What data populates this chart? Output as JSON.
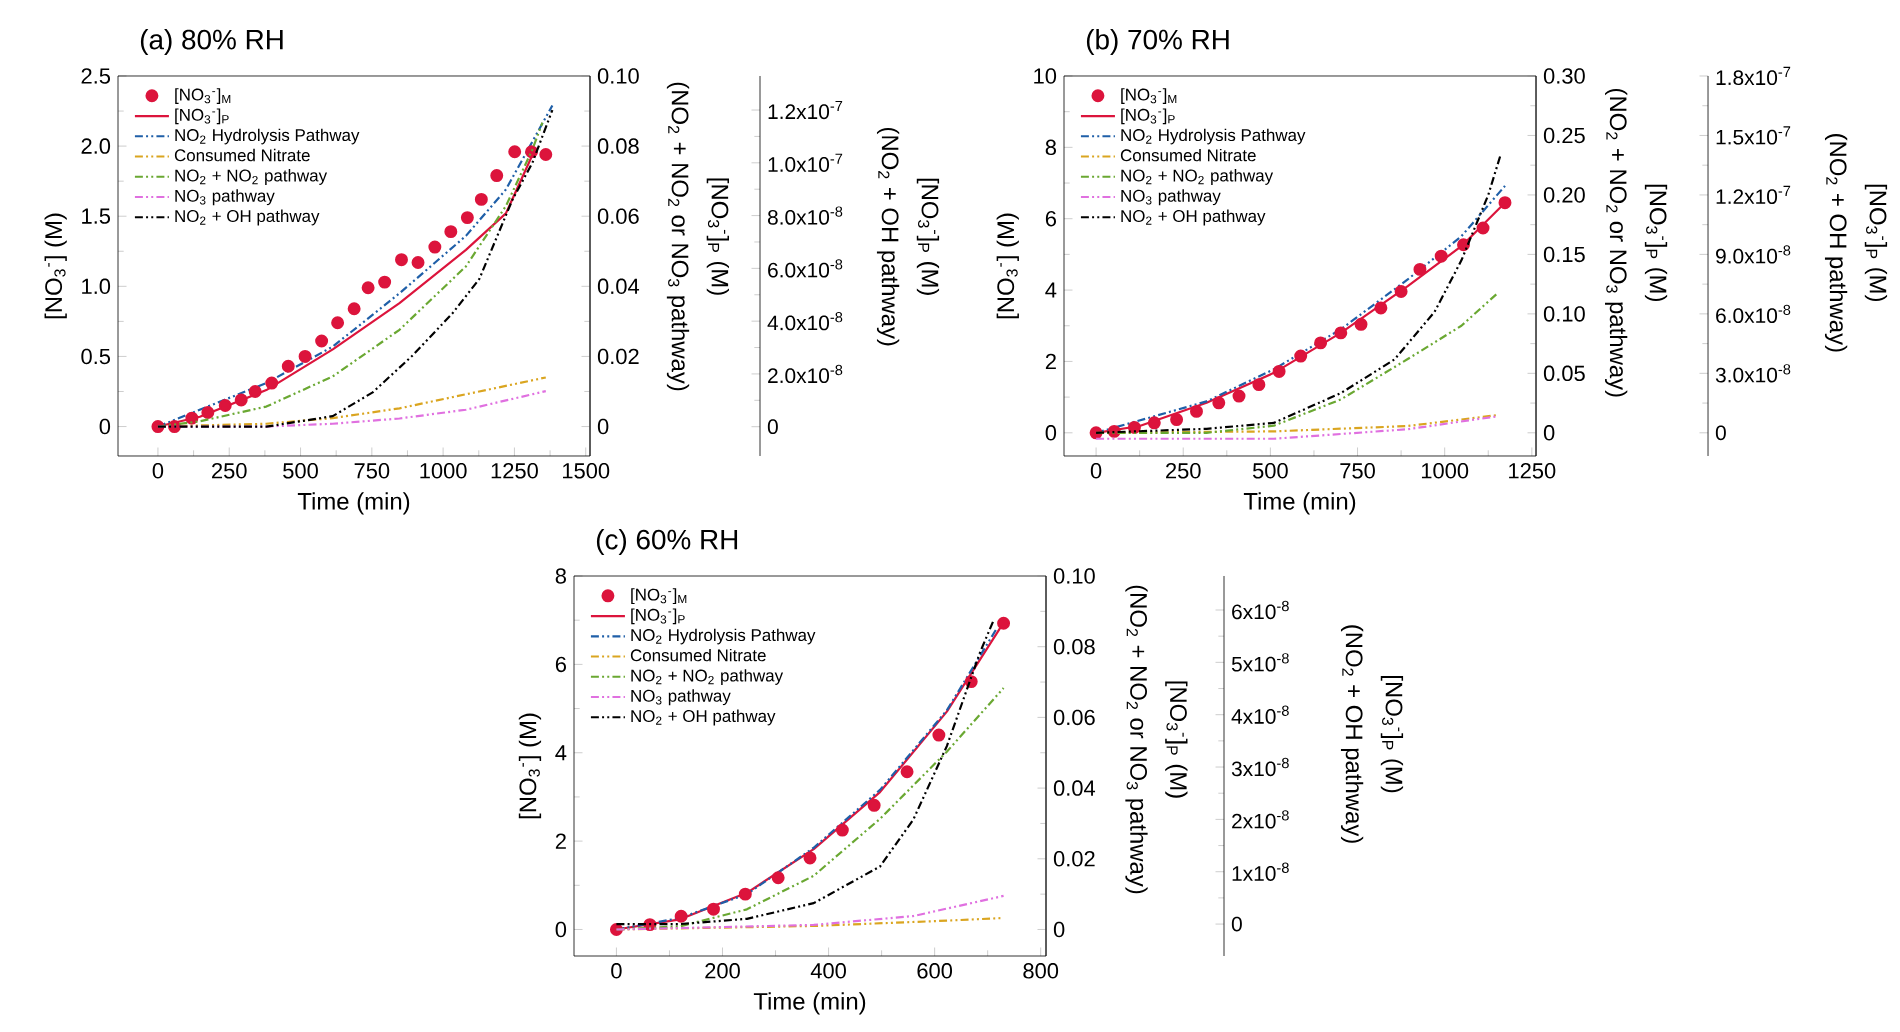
{
  "chart_data": [
    {
      "type": "line",
      "title": "(a) 80% RH",
      "xlabel": "Time (min)",
      "ylabel": "[NO$_{3}$$^{-}$] (M)",
      "y2label": "[NO$_{3}$$^{-}$]$_{P}$ (M) (NO$_{2}$ + NO$_{2}$ or NO$_{3}$ pathway)",
      "y3label": "[NO$_{3}$$^{-}$]$_{P}$ (M) (NO$_{2}$ + OH pathway)",
      "legend": "top left",
      "xlim": [
        -140,
        1515
      ],
      "xticks": [
        0,
        250,
        500,
        750,
        1000,
        1250,
        1500
      ],
      "ylim": [
        -0.21,
        2.5
      ],
      "yticks": [
        0,
        0.5,
        {
          "value": 1,
          "label": "1.0"
        },
        1.5,
        {
          "value": 2,
          "label": "2.0"
        },
        2.5
      ],
      "y2lim": [
        -0.0084,
        0.1
      ],
      "y2ticks": [
        0,
        0.02,
        0.04,
        0.06,
        0.08,
        {
          "value": 0.1,
          "label": "0.10"
        }
      ],
      "y3lim": [
        -1.11e-08,
        1.329e-07
      ],
      "y3ticks": [
        0,
        {
          "value": 2e-08,
          "label": "2.0x10$^{-8}$"
        },
        {
          "value": 4e-08,
          "label": "4.0x10$^{-8}$"
        },
        {
          "value": 6e-08,
          "label": "6.0x10$^{-8}$"
        },
        {
          "value": 8e-08,
          "label": "8.0x10$^{-8}$"
        },
        {
          "value": 1e-07,
          "label": "1.0x10$^{-7}$"
        },
        {
          "value": 1.2e-07,
          "label": "1.2x10$^{-7}$"
        }
      ],
      "series": [
        {
          "name": "[NO$_{3}$$^{-}$]$_{M}$",
          "type": "scatter",
          "marker": "circle",
          "color": "#dc143c",
          "x": [
            0,
            58,
            119,
            175,
            236,
            292,
            341,
            399,
            457,
            516,
            574,
            630,
            688,
            737,
            795,
            854,
            912,
            971,
            1027,
            1085,
            1134,
            1188,
            1251,
            1310,
            1360
          ],
          "values": [
            0,
            0,
            0.06,
            0.1,
            0.15,
            0.19,
            0.25,
            0.31,
            0.43,
            0.5,
            0.61,
            0.74,
            0.84,
            0.99,
            1.03,
            1.19,
            1.17,
            1.28,
            1.39,
            1.49,
            1.62,
            1.79,
            1.96,
            1.96,
            1.94
          ]
        },
        {
          "name": "[NO$_{3}$$^{-}$]$_{P}$",
          "line_style": "solid",
          "color": "#dc143c",
          "x": [
            0,
            147,
            380,
            613,
            847,
            1080,
            1220,
            1325
          ],
          "values": [
            0,
            0.07,
            0.26,
            0.55,
            0.88,
            1.26,
            1.52,
            1.99
          ]
        },
        {
          "name": "NO$_{2}$ Hydrolysis Pathway",
          "line_style": "dashed",
          "color": "#1f5fa8",
          "x": [
            0,
            380,
            613,
            847,
            1080,
            1220,
            1383
          ],
          "values": [
            0,
            0.31,
            0.57,
            0.95,
            1.36,
            1.69,
            2.29
          ]
        },
        {
          "name": "Consumed Nitrate",
          "line_style": "dashed",
          "color": "#daa520",
          "x": [
            0,
            380,
            613,
            847,
            1080,
            1360
          ],
          "values": [
            0,
            0.02,
            0.06,
            0.13,
            0.23,
            0.35
          ]
        },
        {
          "name": "NO$_{2}$ + NO$_{2}$ pathway",
          "line_style": "dashed",
          "color": "#6aa832",
          "axis": "y2",
          "x": [
            0,
            147,
            380,
            613,
            847,
            1080,
            1220,
            1313,
            1348
          ],
          "values": [
            0,
            0.0015,
            0.0057,
            0.0143,
            0.0276,
            0.0457,
            0.0629,
            0.079,
            0.0867
          ]
        },
        {
          "name": "NO$_{3}$ pathway",
          "line_style": "dashed",
          "color": "#e070e0",
          "axis": "y2",
          "x": [
            0,
            380,
            613,
            847,
            1080,
            1360
          ],
          "values": [
            0,
            0,
            0.0008,
            0.0023,
            0.0048,
            0.0101
          ]
        },
        {
          "name": "NO$_{2}$ + OH pathway",
          "line_style": "dashed",
          "color": "#000000",
          "axis": "y3",
          "x": [
            0,
            380,
            613,
            753,
            893,
            1033,
            1127,
            1243,
            1313,
            1383
          ],
          "values": [
            0,
            0,
            4e-09,
            1.3e-08,
            2.7e-08,
            4.3e-08,
            5.6e-08,
            8.6e-08,
            1e-07,
            1.2e-07
          ]
        }
      ]
    },
    {
      "type": "line",
      "title": "(b) 70% RH",
      "xlabel": "Time (min)",
      "ylabel": "[NO$_{3}$$^{-}$] (M)",
      "y2label": "[NO$_{3}$$^{-}$]$_{P}$ (M) (NO$_{2}$ + NO$_{2}$ or NO$_{3}$ pathway)",
      "y3label": "[NO$_{3}$$^{-}$]$_{P}$ (M) (NO$_{2}$ + OH pathway)",
      "legend": "top left",
      "xlim": [
        -92,
        1262
      ],
      "xticks": [
        0,
        250,
        500,
        750,
        1000,
        1250
      ],
      "ylim": [
        -0.65,
        10
      ],
      "yticks": [
        0,
        2,
        4,
        6,
        8,
        10
      ],
      "y2lim": [
        -0.0195,
        0.3
      ],
      "y2ticks": [
        0,
        0.05,
        {
          "value": 0.1,
          "label": "0.10"
        },
        0.15,
        {
          "value": 0.2,
          "label": "0.20"
        },
        0.25,
        {
          "value": 0.3,
          "label": "0.30"
        }
      ],
      "y3lim": [
        -1.17e-08,
        1.8e-07
      ],
      "y3ticks": [
        0,
        {
          "value": 3e-08,
          "label": "3.0x10$^{-8}$"
        },
        {
          "value": 6e-08,
          "label": "6.0x10$^{-8}$"
        },
        {
          "value": 9e-08,
          "label": "9.0x10$^{-8}$"
        },
        {
          "value": 1.2e-07,
          "label": "1.2x10$^{-7}$"
        },
        {
          "value": 1.5e-07,
          "label": "1.5x10$^{-7}$"
        },
        {
          "value": 1.8e-07,
          "label": "1.8x10$^{-7}$"
        }
      ],
      "series": [
        {
          "name": "[NO$_{3}$$^{-}$]$_{M}$",
          "type": "scatter",
          "marker": "circle",
          "color": "#dc143c",
          "x": [
            0,
            52,
            110,
            167,
            231,
            288,
            352,
            410,
            467,
            525,
            587,
            644,
            702,
            760,
            817,
            875,
            929,
            990,
            1054,
            1110,
            1173
          ],
          "values": [
            0,
            0.04,
            0.15,
            0.28,
            0.37,
            0.6,
            0.84,
            1.03,
            1.35,
            1.72,
            2.15,
            2.52,
            2.8,
            3.04,
            3.5,
            3.96,
            4.58,
            4.95,
            5.27,
            5.74,
            6.45
          ]
        },
        {
          "name": "[NO$_{3}$$^{-}$]$_{P}$",
          "line_style": "solid",
          "color": "#dc143c",
          "x": [
            0,
            125,
            317,
            510,
            702,
            894,
            1048,
            1173
          ],
          "values": [
            0,
            0.19,
            0.84,
            1.68,
            2.8,
            4.11,
            5.23,
            6.45
          ]
        },
        {
          "name": "NO$_{2}$ Hydrolysis Pathway",
          "line_style": "dashed",
          "color": "#1f5fa8",
          "x": [
            0,
            317,
            510,
            702,
            894,
            1048,
            1173
          ],
          "values": [
            0,
            0.88,
            1.78,
            2.9,
            4.3,
            5.51,
            6.92
          ]
        },
        {
          "name": "Consumed Nitrate",
          "line_style": "dashed",
          "color": "#daa520",
          "x": [
            0,
            510,
            894,
            1154
          ],
          "values": [
            0,
            0.04,
            0.19,
            0.5
          ]
        },
        {
          "name": "NO$_{2}$ + NO$_{2}$ pathway",
          "line_style": "dashed",
          "color": "#6aa832",
          "axis": "y2",
          "x": [
            0,
            317,
            510,
            702,
            894,
            1048,
            1154
          ],
          "values": [
            0,
            0,
            0.006,
            0.028,
            0.062,
            0.09,
            0.118
          ]
        },
        {
          "name": "NO$_{3}$ pathway",
          "line_style": "dashed",
          "color": "#e070e0",
          "axis": "y2",
          "x": [
            0,
            510,
            894,
            1154
          ],
          "values": [
            -0.005,
            -0.005,
            0.003,
            0.014
          ]
        },
        {
          "name": "NO$_{2}$ + OH pathway",
          "line_style": "dashed",
          "color": "#000000",
          "axis": "y3",
          "x": [
            0,
            317,
            510,
            702,
            856,
            971,
            1048,
            1125,
            1160
          ],
          "values": [
            0,
            2e-09,
            5e-09,
            2e-08,
            3.7e-08,
            6.1e-08,
            8.7e-08,
            1.2e-07,
            1.4e-07
          ]
        }
      ]
    },
    {
      "type": "line",
      "title": "(c) 60% RH",
      "xlabel": "Time (min)",
      "ylabel": "[NO$_{3}$$^{-}$] (M)",
      "y2label": "[NO$_{3}$$^{-}$]$_{P}$ (M) (NO$_{2}$ + NO$_{2}$ or NO$_{3}$ pathway)",
      "y3label": "[NO$_{3}$$^{-}$]$_{P}$ (M) (NO$_{2}$ + OH pathway)",
      "legend": "top left",
      "xlim": [
        -80,
        810
      ],
      "xticks": [
        0,
        200,
        400,
        600,
        800
      ],
      "ylim": [
        -0.6,
        8
      ],
      "yticks": [
        0,
        2,
        4,
        6,
        8
      ],
      "y2lim": [
        -0.0075,
        0.1
      ],
      "y2ticks": [
        0,
        0.02,
        0.04,
        0.06,
        0.08,
        {
          "value": 0.1,
          "label": "0.10"
        }
      ],
      "y3lim": [
        -6.1e-09,
        6.65e-08
      ],
      "y3ticks": [
        0,
        {
          "value": 1e-08,
          "label": "1x10$^{-8}$"
        },
        {
          "value": 2e-08,
          "label": "2x10$^{-8}$"
        },
        {
          "value": 3e-08,
          "label": "3x10$^{-8}$"
        },
        {
          "value": 4e-08,
          "label": "4x10$^{-8}$"
        },
        {
          "value": 5e-08,
          "label": "5x10$^{-8}$"
        },
        {
          "value": 6e-08,
          "label": "6x10$^{-8}$"
        }
      ],
      "series": [
        {
          "name": "[NO$_{3}$$^{-}$]$_{M}$",
          "type": "scatter",
          "marker": "circle",
          "color": "#dc143c",
          "x": [
            0,
            63,
            122,
            183,
            243,
            305,
            365,
            426,
            486,
            548,
            608,
            669,
            730
          ],
          "values": [
            0,
            0.11,
            0.3,
            0.46,
            0.8,
            1.17,
            1.62,
            2.25,
            2.81,
            3.57,
            4.4,
            5.61,
            6.93
          ]
        },
        {
          "name": "[NO$_{3}$$^{-}$]$_{P}$",
          "line_style": "solid",
          "color": "#dc143c",
          "x": [
            0,
            120,
            246,
            372,
            497,
            623,
            724
          ],
          "values": [
            0,
            0.23,
            0.83,
            1.82,
            3.11,
            4.93,
            6.83
          ]
        },
        {
          "name": "NO$_{2}$ Hydrolysis Pathway",
          "line_style": "dashed",
          "color": "#1f5fa8",
          "x": [
            0,
            120,
            246,
            372,
            497,
            623,
            718
          ],
          "values": [
            0,
            0.26,
            0.8,
            1.85,
            3.16,
            4.96,
            6.83
          ]
        },
        {
          "name": "Consumed Nitrate",
          "line_style": "dashed",
          "color": "#daa520",
          "x": [
            0,
            372,
            623,
            730
          ],
          "values": [
            0,
            0.08,
            0.2,
            0.26
          ]
        },
        {
          "name": "NO$_{2}$ + NO$_{2}$ pathway",
          "line_style": "dashed",
          "color": "#6aa832",
          "axis": "y2",
          "x": [
            0,
            120,
            246,
            372,
            497,
            623,
            730
          ],
          "values": [
            0,
            0.0009,
            0.0057,
            0.0152,
            0.0313,
            0.0503,
            0.0683
          ]
        },
        {
          "name": "NO$_{3}$ pathway",
          "line_style": "dashed",
          "color": "#e070e0",
          "axis": "y2",
          "x": [
            0,
            372,
            560,
            730
          ],
          "values": [
            0,
            0.0013,
            0.0038,
            0.0095
          ]
        },
        {
          "name": "NO$_{2}$ + OH pathway",
          "line_style": "dashed",
          "color": "#000000",
          "axis": "y3",
          "x": [
            0,
            120,
            246,
            372,
            497,
            560,
            623,
            686,
            711
          ],
          "values": [
            0,
            0,
            1e-09,
            4e-09,
            1.1e-08,
            2e-08,
            3.4e-08,
            5.2e-08,
            5.8e-08
          ]
        }
      ]
    }
  ]
}
